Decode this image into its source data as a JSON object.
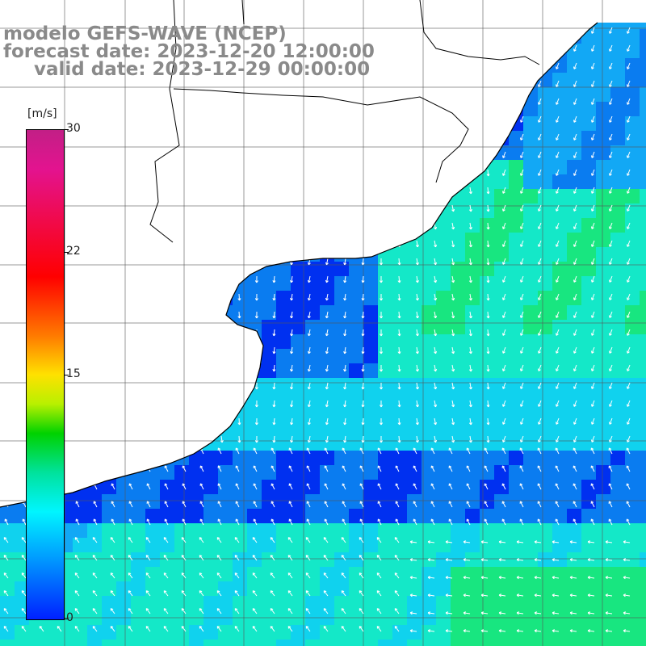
{
  "title": {
    "line1": "modelo GEFS-WAVE (NCEP)",
    "line2": "forecast date: 2023-12-20 12:00:00",
    "line3": "valid date: 2023-12-29 00:00:00"
  },
  "colorbar": {
    "unit": "[m/s]",
    "min": 0,
    "max": 30,
    "ticks": [
      {
        "label": "30",
        "value": 30
      },
      {
        "label": "22",
        "value": 22
      },
      {
        "label": "15",
        "value": 15
      },
      {
        "label": "0",
        "value": 0
      }
    ],
    "colors": [
      "#0020ff",
      "#00a0ff",
      "#00f5ff",
      "#00e29c",
      "#00d200",
      "#b8f000",
      "#ffe100",
      "#ff7a00",
      "#ff0000",
      "#e3138f",
      "#c21f86"
    ]
  },
  "map": {
    "land_color": "#ffffff",
    "coast_color": "#000000",
    "grid_color": "#555555",
    "arrow_color": "#ffffff",
    "ocean_colors": {
      "deep_blue": "#0030f0",
      "blue": "#0a7cf0",
      "azure": "#12a8f5",
      "cyan": "#10d2ee",
      "aqua": "#14e8c8",
      "green": "#18e680"
    }
  }
}
